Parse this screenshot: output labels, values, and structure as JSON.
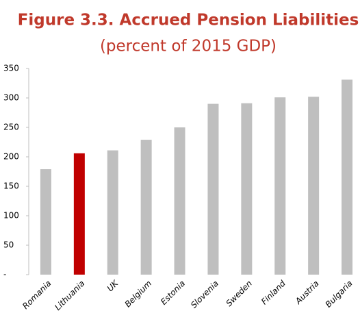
{
  "chart_data": {
    "type": "bar",
    "title": "Figure 3.3. Accrued Pension Liabilities",
    "subtitle": "(percent of 2015 GDP)",
    "categories": [
      "Romania",
      "Lithuania",
      "UK",
      "Belgium",
      "Estonia",
      "Slovenia",
      "Sweden",
      "Finland",
      "Austria",
      "Bulgaria"
    ],
    "values": [
      179,
      206,
      211,
      229,
      250,
      290,
      291,
      301,
      302,
      331
    ],
    "colors": [
      "#bfbfbf",
      "#c00000",
      "#bfbfbf",
      "#bfbfbf",
      "#bfbfbf",
      "#bfbfbf",
      "#bfbfbf",
      "#bfbfbf",
      "#bfbfbf",
      "#bfbfbf"
    ],
    "ylim": [
      0,
      350
    ],
    "yticks": [
      {
        "value": 0,
        "label": "-"
      },
      50,
      100,
      150,
      200,
      250,
      300,
      350
    ],
    "grid": false
  }
}
